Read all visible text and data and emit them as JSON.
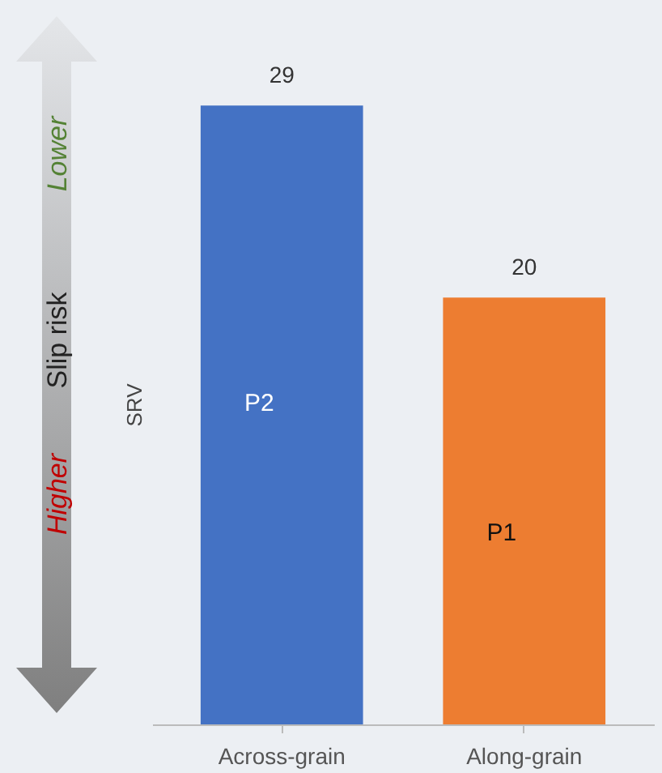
{
  "chart_data": {
    "type": "bar",
    "ylabel": "SRV",
    "categories": [
      "Across-grain",
      "Along-grain"
    ],
    "values": [
      29,
      20
    ],
    "colors": [
      "#4472c4",
      "#ed7d31"
    ],
    "tick_labels": "x",
    "data_labels": true,
    "annotations": [
      "P2",
      "P1",
      "Lower",
      "Slip risk",
      "Higher"
    ]
  }
}
